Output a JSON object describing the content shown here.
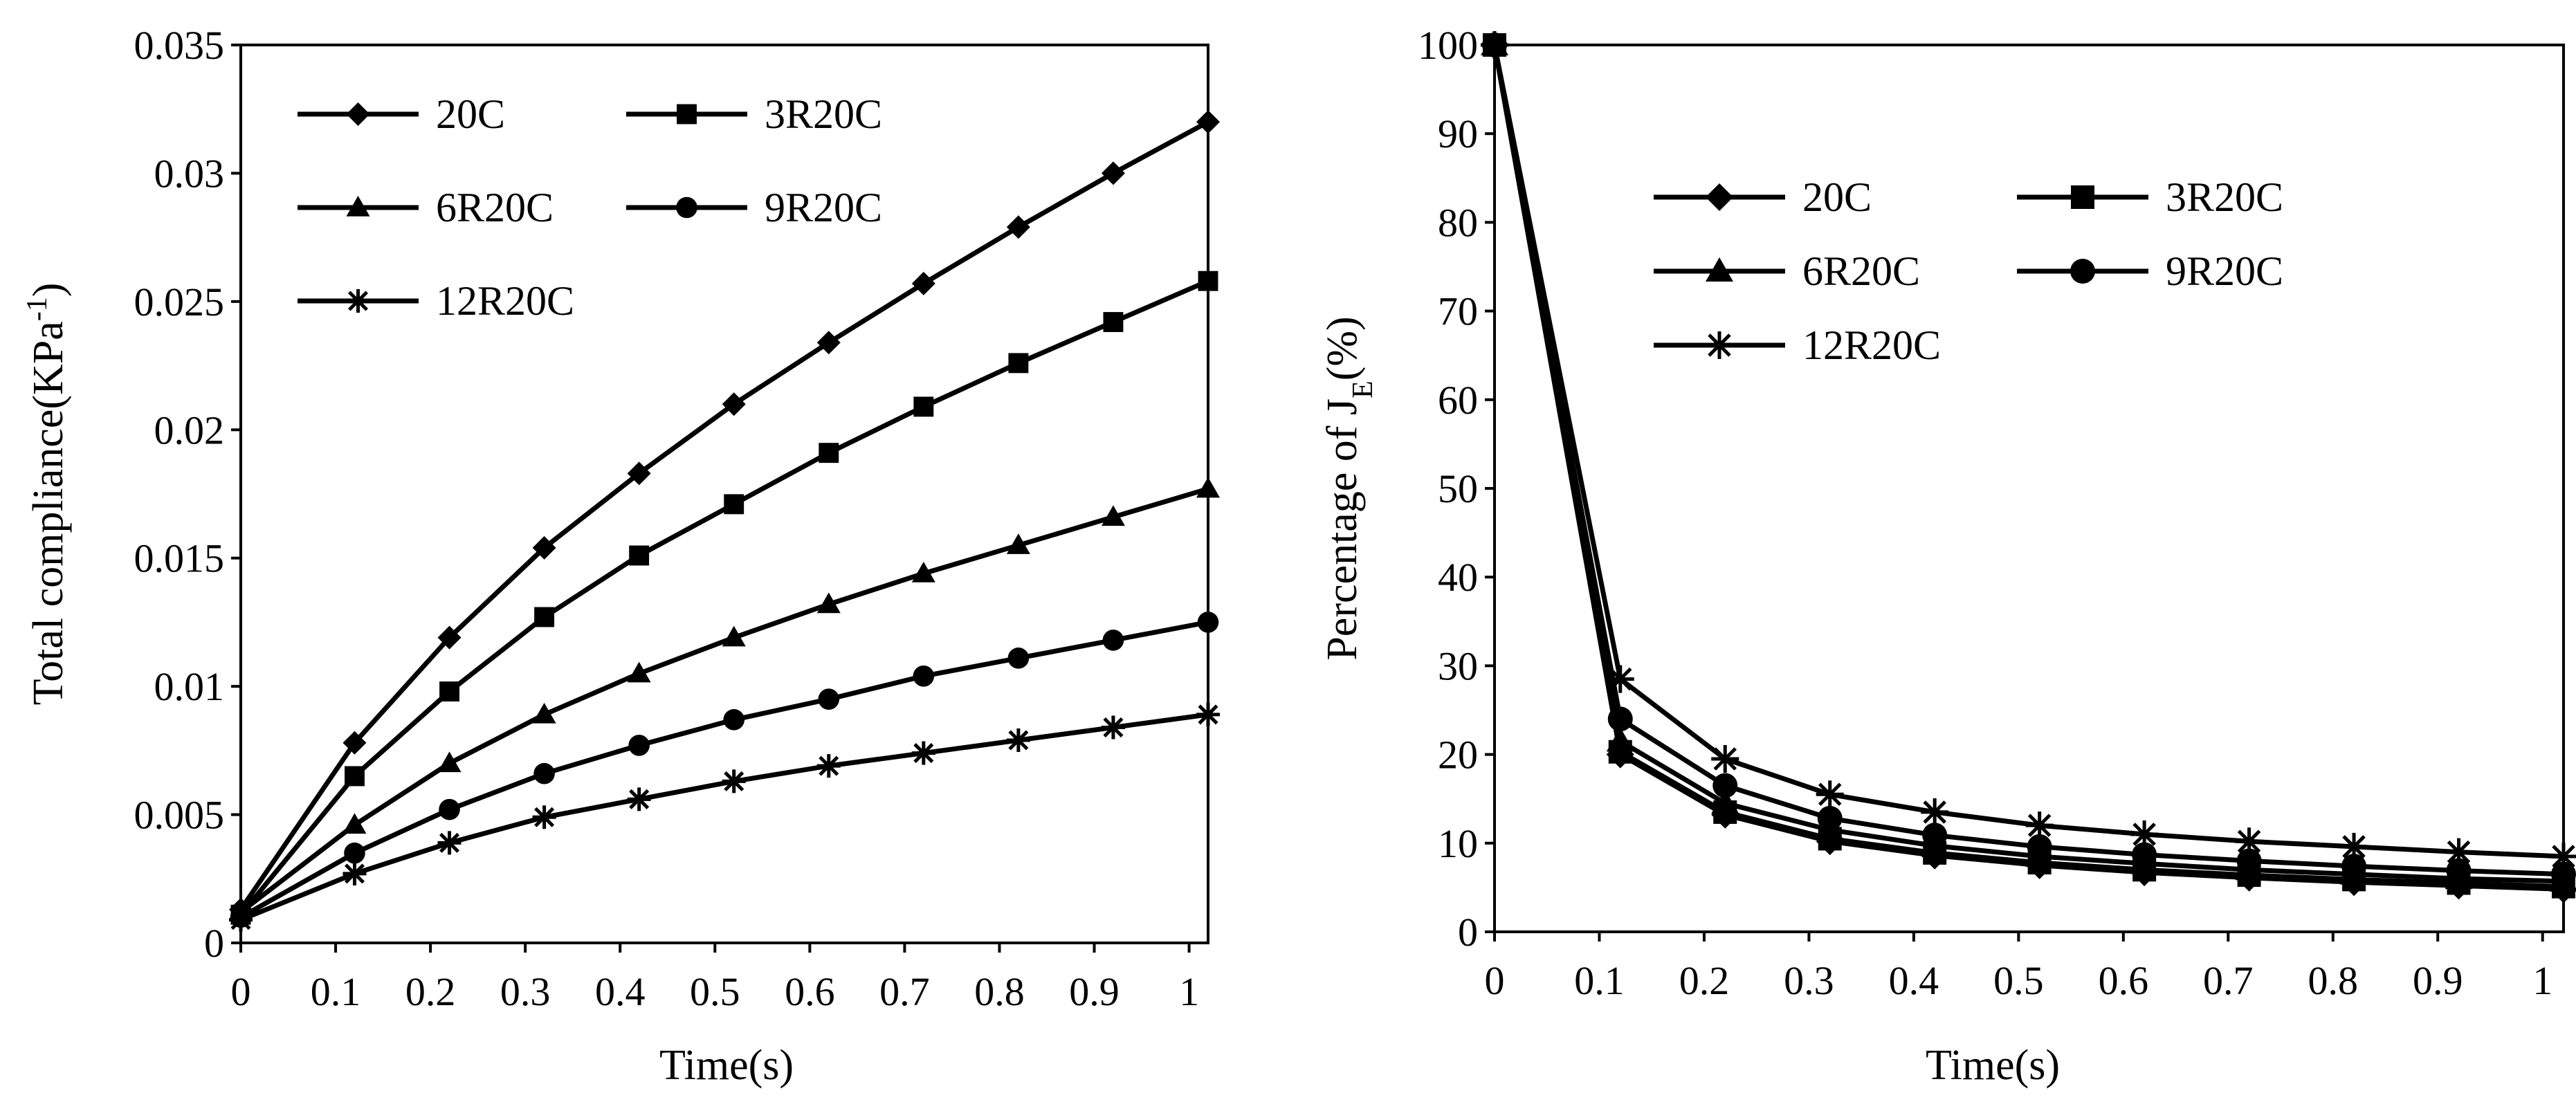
{
  "figure": {
    "panels": [
      {
        "title": "",
        "xlabel": "Time(s)",
        "ylabel": "Total compliance(KPa-1)"
      },
      {
        "title": "",
        "xlabel": "Time(s)",
        "ylabel": "Percentage of JE(%)"
      }
    ]
  },
  "chart_data": [
    {
      "type": "line",
      "title": "",
      "xlabel": "Time(s)",
      "ylabel": "Total compliance(KPa-1)",
      "xlim": [
        0,
        1.02
      ],
      "ylim": [
        0,
        0.035
      ],
      "x_ticks": [
        "0",
        "0.1",
        "0.2",
        "0.3",
        "0.4",
        "0.5",
        "0.6",
        "0.7",
        "0.8",
        "0.9",
        "1"
      ],
      "y_ticks": [
        "0",
        "0.005",
        "0.01",
        "0.015",
        "0.02",
        "0.025",
        "0.03",
        "0.035"
      ],
      "grid": false,
      "legend_position": "top-left",
      "x": [
        0.0,
        0.12,
        0.22,
        0.32,
        0.42,
        0.52,
        0.62,
        0.72,
        0.82,
        0.92,
        1.02
      ],
      "series": [
        {
          "name": "20C",
          "marker": "diamond",
          "values": [
            0.0013,
            0.0078,
            0.0119,
            0.0154,
            0.0183,
            0.021,
            0.0234,
            0.0257,
            0.0279,
            0.03,
            0.032
          ]
        },
        {
          "name": "3R20C",
          "marker": "square",
          "values": [
            0.0011,
            0.0065,
            0.0098,
            0.0127,
            0.0151,
            0.0171,
            0.0191,
            0.0209,
            0.0226,
            0.0242,
            0.0258
          ]
        },
        {
          "name": "6R20C",
          "marker": "triangle",
          "values": [
            0.0012,
            0.0046,
            0.007,
            0.0089,
            0.0105,
            0.0119,
            0.0132,
            0.0144,
            0.0155,
            0.0166,
            0.0177
          ]
        },
        {
          "name": "9R20C",
          "marker": "circle",
          "values": [
            0.001,
            0.0035,
            0.0052,
            0.0066,
            0.0077,
            0.0087,
            0.0095,
            0.0104,
            0.0111,
            0.0118,
            0.0125
          ]
        },
        {
          "name": "12R20C",
          "marker": "star",
          "values": [
            0.0009,
            0.0027,
            0.0039,
            0.0049,
            0.0056,
            0.0063,
            0.0069,
            0.0074,
            0.0079,
            0.0084,
            0.0089
          ]
        }
      ]
    },
    {
      "type": "line",
      "title": "",
      "xlabel": "Time(s)",
      "ylabel": "Percentage of JE(%)",
      "xlim": [
        0,
        1.02
      ],
      "ylim": [
        0,
        100
      ],
      "x_ticks": [
        "0",
        "0.1",
        "0.2",
        "0.3",
        "0.4",
        "0.5",
        "0.6",
        "0.7",
        "0.8",
        "0.9",
        "1"
      ],
      "y_ticks": [
        "0",
        "10",
        "20",
        "30",
        "40",
        "50",
        "60",
        "70",
        "80",
        "90",
        "100"
      ],
      "grid": false,
      "legend_position": "top-right",
      "x": [
        0.0,
        0.12,
        0.22,
        0.32,
        0.42,
        0.52,
        0.62,
        0.72,
        0.82,
        0.92,
        1.02
      ],
      "series": [
        {
          "name": "20C",
          "marker": "diamond",
          "values": [
            100,
            20.0,
            13.2,
            10.2,
            8.6,
            7.5,
            6.7,
            6.1,
            5.6,
            5.2,
            4.8
          ]
        },
        {
          "name": "3R20C",
          "marker": "square",
          "values": [
            100,
            20.3,
            13.5,
            10.5,
            8.9,
            7.8,
            7.0,
            6.4,
            5.9,
            5.5,
            5.1
          ]
        },
        {
          "name": "6R20C",
          "marker": "triangle",
          "values": [
            100,
            21.5,
            14.5,
            11.5,
            9.7,
            8.5,
            7.7,
            7.0,
            6.5,
            6.0,
            5.7
          ]
        },
        {
          "name": "9R20C",
          "marker": "circle",
          "values": [
            100,
            24.0,
            16.5,
            12.8,
            10.9,
            9.6,
            8.7,
            8.0,
            7.4,
            6.9,
            6.5
          ]
        },
        {
          "name": "12R20C",
          "marker": "star",
          "values": [
            100,
            28.5,
            19.5,
            15.5,
            13.5,
            12.0,
            11.0,
            10.2,
            9.6,
            9.0,
            8.5
          ]
        }
      ]
    }
  ]
}
